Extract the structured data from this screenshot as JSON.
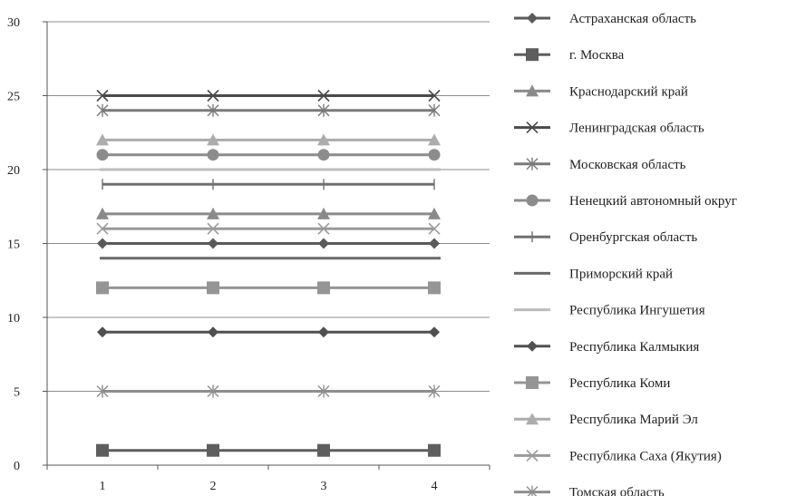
{
  "chart_data": {
    "type": "line",
    "x": [
      1,
      2,
      3,
      4
    ],
    "xticks": [
      "1",
      "2",
      "3",
      "4"
    ],
    "ylim": [
      0,
      30
    ],
    "yticks": [
      0,
      5,
      10,
      15,
      20,
      25,
      30
    ],
    "grid": "horizontal",
    "legend_position": "right",
    "series": [
      {
        "name": "Астраханская область",
        "values": [
          15,
          15,
          15,
          15
        ],
        "color": "#5a5a5a",
        "marker": "diamond"
      },
      {
        "name": "г. Москва",
        "values": [
          1,
          1,
          1,
          1
        ],
        "color": "#5e5e5e",
        "marker": "square"
      },
      {
        "name": "Краснодарский край",
        "values": [
          17,
          17,
          17,
          17
        ],
        "color": "#8a8a8a",
        "marker": "triangle"
      },
      {
        "name": "Ленинградская область",
        "values": [
          25,
          25,
          25,
          25
        ],
        "color": "#4a4a4a",
        "marker": "x"
      },
      {
        "name": "Московская область",
        "values": [
          24,
          24,
          24,
          24
        ],
        "color": "#7a7a7a",
        "marker": "asterisk"
      },
      {
        "name": "Ненецкий автономный округ",
        "values": [
          21,
          21,
          21,
          21
        ],
        "color": "#8c8c8c",
        "marker": "circle"
      },
      {
        "name": "Оренбургская область",
        "values": [
          19,
          19,
          19,
          19
        ],
        "color": "#707070",
        "marker": "plus"
      },
      {
        "name": "Приморский край",
        "values": [
          14,
          14,
          14,
          14
        ],
        "color": "#6a6a6a",
        "marker": "none"
      },
      {
        "name": "Республика Ингушетия",
        "values": [
          20,
          20,
          20,
          20
        ],
        "color": "#bcbcbc",
        "marker": "none"
      },
      {
        "name": "Республика Калмыкия",
        "values": [
          9,
          9,
          9,
          9
        ],
        "color": "#505050",
        "marker": "diamond"
      },
      {
        "name": "Республика Коми",
        "values": [
          12,
          12,
          12,
          12
        ],
        "color": "#959595",
        "marker": "square"
      },
      {
        "name": "Республика Марий Эл",
        "values": [
          22,
          22,
          22,
          22
        ],
        "color": "#acacac",
        "marker": "triangle"
      },
      {
        "name": "Республика Саха (Якутия)",
        "values": [
          16,
          16,
          16,
          16
        ],
        "color": "#9a9a9a",
        "marker": "x"
      },
      {
        "name": "Томская область",
        "values": [
          5,
          5,
          5,
          5
        ],
        "color": "#8e8e8e",
        "marker": "asterisk"
      }
    ]
  }
}
